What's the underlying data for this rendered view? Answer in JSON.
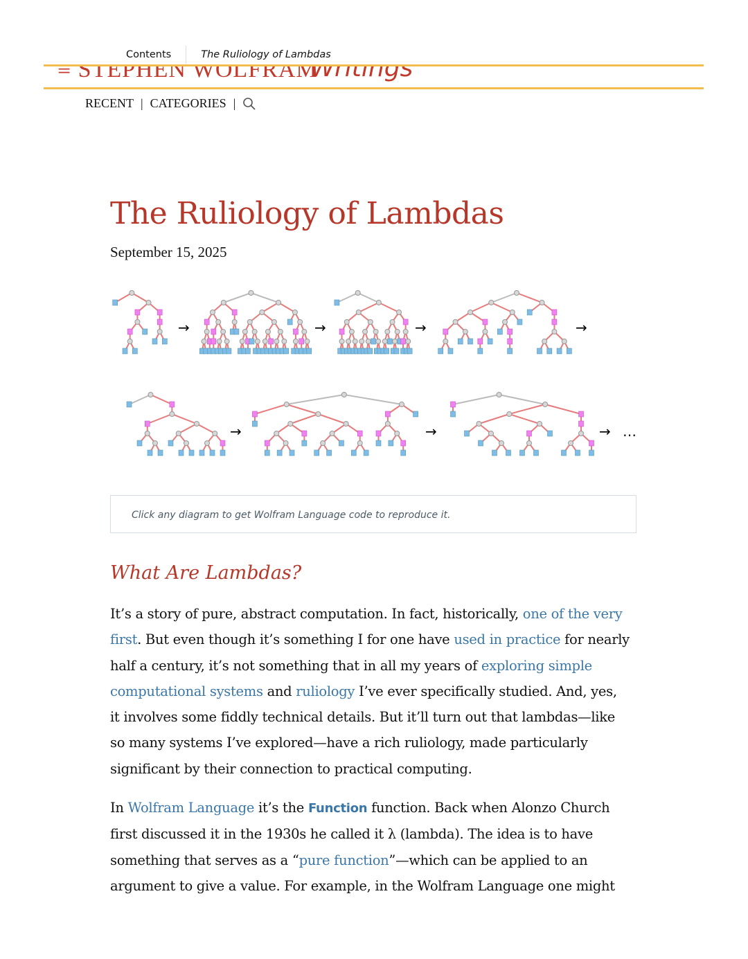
{
  "top_nav": {
    "contents": "Contents",
    "current": "The Ruliology of Lambdas"
  },
  "brand": {
    "name": "≡ STEPHEN WOLFRAM",
    "section": "Writings"
  },
  "sub_nav": {
    "recent": "RECENT",
    "categories": "CATEGORIES",
    "sep": "|",
    "search_icon": "search-icon"
  },
  "article": {
    "title": "The Ruliology of Lambdas",
    "date": "September 15, 2025",
    "diagram": {
      "arrow": "→",
      "ellipsis": "…",
      "colors": {
        "application": "#d8d8d8",
        "lambda": "#ee82ee",
        "variable": "#7fbde8",
        "edge_active": "#e77b7b",
        "edge_inactive": "#bbbbbb"
      }
    },
    "caption": "Click any diagram to get Wolfram Language code to reproduce it.",
    "section_heading": "What Are Lambdas?",
    "paragraphs": [
      [
        {
          "t": "It’s a story of pure, abstract computation. In fact, historically, "
        },
        {
          "t": "one of the very first",
          "link": true
        },
        {
          "t": ". But even though it’s something I for one have "
        },
        {
          "t": "used in practice",
          "link": true
        },
        {
          "t": " for nearly half a century, it’s not something that in all my years of "
        },
        {
          "t": "exploring simple computational systems",
          "link": true
        },
        {
          "t": " and "
        },
        {
          "t": "ruliology",
          "link": true
        },
        {
          "t": " I’ve ever specifically studied. And, yes, it involves some fiddly technical details. But it’ll turn out that lambdas—like so many systems I’ve explored—have a rich ruliology, made particularly significant by their connection to practical computing."
        }
      ],
      [
        {
          "t": "In "
        },
        {
          "t": "Wolfram Language",
          "link": true
        },
        {
          "t": " it’s the "
        },
        {
          "t": "Function",
          "code": true
        },
        {
          "t": " function. Back when Alonzo Church first discussed it in the 1930s he called it λ (lambda). The idea is to have something that serves as a “"
        },
        {
          "t": "pure function",
          "link": true
        },
        {
          "t": "”—which can be applied to an argument to give a value. For example, in the Wolfram Language one might"
        }
      ]
    ],
    "accent_color": "#b5382a",
    "link_color": "#3a77a8"
  }
}
